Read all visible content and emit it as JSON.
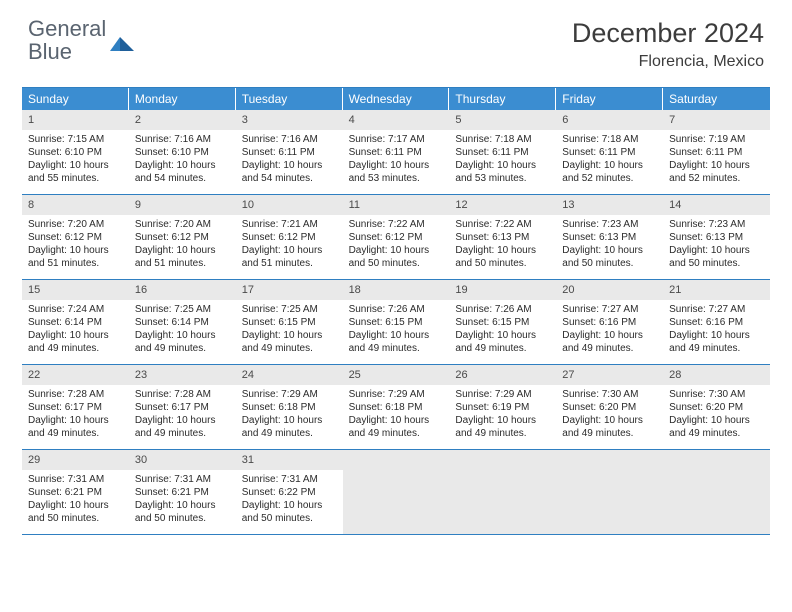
{
  "logo": {
    "text_general": "General",
    "text_blue": "Blue"
  },
  "title": "December 2024",
  "location": "Florencia, Mexico",
  "colors": {
    "header_bar": "#3b8dd1",
    "border": "#2f7fc1",
    "daynum_bg": "#e9e9e9",
    "empty_bg": "#e9e9e9",
    "text": "#2b2b2b",
    "logo_gray": "#5a6470",
    "logo_blue": "#2f7fc1"
  },
  "days_of_week": [
    "Sunday",
    "Monday",
    "Tuesday",
    "Wednesday",
    "Thursday",
    "Friday",
    "Saturday"
  ],
  "weeks": [
    [
      {
        "n": "1",
        "sunrise": "7:15 AM",
        "sunset": "6:10 PM",
        "daylight": "10 hours and 55 minutes."
      },
      {
        "n": "2",
        "sunrise": "7:16 AM",
        "sunset": "6:10 PM",
        "daylight": "10 hours and 54 minutes."
      },
      {
        "n": "3",
        "sunrise": "7:16 AM",
        "sunset": "6:11 PM",
        "daylight": "10 hours and 54 minutes."
      },
      {
        "n": "4",
        "sunrise": "7:17 AM",
        "sunset": "6:11 PM",
        "daylight": "10 hours and 53 minutes."
      },
      {
        "n": "5",
        "sunrise": "7:18 AM",
        "sunset": "6:11 PM",
        "daylight": "10 hours and 53 minutes."
      },
      {
        "n": "6",
        "sunrise": "7:18 AM",
        "sunset": "6:11 PM",
        "daylight": "10 hours and 52 minutes."
      },
      {
        "n": "7",
        "sunrise": "7:19 AM",
        "sunset": "6:11 PM",
        "daylight": "10 hours and 52 minutes."
      }
    ],
    [
      {
        "n": "8",
        "sunrise": "7:20 AM",
        "sunset": "6:12 PM",
        "daylight": "10 hours and 51 minutes."
      },
      {
        "n": "9",
        "sunrise": "7:20 AM",
        "sunset": "6:12 PM",
        "daylight": "10 hours and 51 minutes."
      },
      {
        "n": "10",
        "sunrise": "7:21 AM",
        "sunset": "6:12 PM",
        "daylight": "10 hours and 51 minutes."
      },
      {
        "n": "11",
        "sunrise": "7:22 AM",
        "sunset": "6:12 PM",
        "daylight": "10 hours and 50 minutes."
      },
      {
        "n": "12",
        "sunrise": "7:22 AM",
        "sunset": "6:13 PM",
        "daylight": "10 hours and 50 minutes."
      },
      {
        "n": "13",
        "sunrise": "7:23 AM",
        "sunset": "6:13 PM",
        "daylight": "10 hours and 50 minutes."
      },
      {
        "n": "14",
        "sunrise": "7:23 AM",
        "sunset": "6:13 PM",
        "daylight": "10 hours and 50 minutes."
      }
    ],
    [
      {
        "n": "15",
        "sunrise": "7:24 AM",
        "sunset": "6:14 PM",
        "daylight": "10 hours and 49 minutes."
      },
      {
        "n": "16",
        "sunrise": "7:25 AM",
        "sunset": "6:14 PM",
        "daylight": "10 hours and 49 minutes."
      },
      {
        "n": "17",
        "sunrise": "7:25 AM",
        "sunset": "6:15 PM",
        "daylight": "10 hours and 49 minutes."
      },
      {
        "n": "18",
        "sunrise": "7:26 AM",
        "sunset": "6:15 PM",
        "daylight": "10 hours and 49 minutes."
      },
      {
        "n": "19",
        "sunrise": "7:26 AM",
        "sunset": "6:15 PM",
        "daylight": "10 hours and 49 minutes."
      },
      {
        "n": "20",
        "sunrise": "7:27 AM",
        "sunset": "6:16 PM",
        "daylight": "10 hours and 49 minutes."
      },
      {
        "n": "21",
        "sunrise": "7:27 AM",
        "sunset": "6:16 PM",
        "daylight": "10 hours and 49 minutes."
      }
    ],
    [
      {
        "n": "22",
        "sunrise": "7:28 AM",
        "sunset": "6:17 PM",
        "daylight": "10 hours and 49 minutes."
      },
      {
        "n": "23",
        "sunrise": "7:28 AM",
        "sunset": "6:17 PM",
        "daylight": "10 hours and 49 minutes."
      },
      {
        "n": "24",
        "sunrise": "7:29 AM",
        "sunset": "6:18 PM",
        "daylight": "10 hours and 49 minutes."
      },
      {
        "n": "25",
        "sunrise": "7:29 AM",
        "sunset": "6:18 PM",
        "daylight": "10 hours and 49 minutes."
      },
      {
        "n": "26",
        "sunrise": "7:29 AM",
        "sunset": "6:19 PM",
        "daylight": "10 hours and 49 minutes."
      },
      {
        "n": "27",
        "sunrise": "7:30 AM",
        "sunset": "6:20 PM",
        "daylight": "10 hours and 49 minutes."
      },
      {
        "n": "28",
        "sunrise": "7:30 AM",
        "sunset": "6:20 PM",
        "daylight": "10 hours and 49 minutes."
      }
    ],
    [
      {
        "n": "29",
        "sunrise": "7:31 AM",
        "sunset": "6:21 PM",
        "daylight": "10 hours and 50 minutes."
      },
      {
        "n": "30",
        "sunrise": "7:31 AM",
        "sunset": "6:21 PM",
        "daylight": "10 hours and 50 minutes."
      },
      {
        "n": "31",
        "sunrise": "7:31 AM",
        "sunset": "6:22 PM",
        "daylight": "10 hours and 50 minutes."
      },
      null,
      null,
      null,
      null
    ]
  ],
  "labels": {
    "sunrise": "Sunrise:",
    "sunset": "Sunset:",
    "daylight": "Daylight:"
  }
}
